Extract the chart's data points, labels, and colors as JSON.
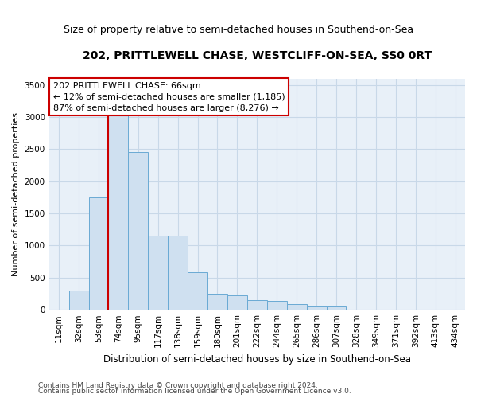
{
  "title": "202, PRITTLEWELL CHASE, WESTCLIFF-ON-SEA, SS0 0RT",
  "subtitle": "Size of property relative to semi-detached houses in Southend-on-Sea",
  "xlabel": "Distribution of semi-detached houses by size in Southend-on-Sea",
  "ylabel": "Number of semi-detached properties",
  "annotation_line1": "202 PRITTLEWELL CHASE: 66sqm",
  "annotation_line2": "← 12% of semi-detached houses are smaller (1,185)",
  "annotation_line3": "87% of semi-detached houses are larger (8,276) →",
  "footer1": "Contains HM Land Registry data © Crown copyright and database right 2024.",
  "footer2": "Contains public sector information licensed under the Open Government Licence v3.0.",
  "categories": [
    "11sqm",
    "32sqm",
    "53sqm",
    "74sqm",
    "95sqm",
    "117sqm",
    "138sqm",
    "159sqm",
    "180sqm",
    "201sqm",
    "222sqm",
    "244sqm",
    "265sqm",
    "286sqm",
    "307sqm",
    "328sqm",
    "349sqm",
    "371sqm",
    "392sqm",
    "413sqm",
    "434sqm"
  ],
  "values": [
    5,
    300,
    1750,
    3250,
    2450,
    1150,
    1150,
    580,
    250,
    230,
    145,
    135,
    90,
    50,
    50,
    0,
    0,
    0,
    0,
    0,
    0
  ],
  "bar_color": "#cfe0f0",
  "bar_edge_color": "#6aaad4",
  "vline_color": "#cc0000",
  "vline_x": 2.5,
  "ylim": [
    0,
    3600
  ],
  "yticks": [
    0,
    500,
    1000,
    1500,
    2000,
    2500,
    3000,
    3500
  ],
  "bg_color": "#e8f0f8",
  "grid_color": "#c8d8e8",
  "annotation_box_color": "white",
  "annotation_box_edge": "#cc0000",
  "title_fontsize": 10,
  "subtitle_fontsize": 9,
  "ylabel_fontsize": 8,
  "xlabel_fontsize": 8.5,
  "tick_fontsize": 7.5,
  "annotation_fontsize": 8,
  "footer_fontsize": 6.5
}
